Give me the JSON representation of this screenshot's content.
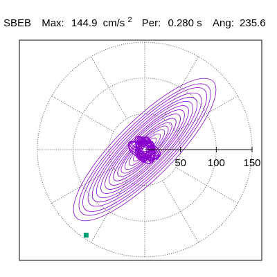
{
  "header": {
    "station": "SBEB",
    "max_label": "Max:",
    "max_value": "144.9",
    "max_unit": "cm/s",
    "max_exp": "2",
    "per_label": "Per:",
    "per_value": "0.280 s",
    "ang_label": "Ang:",
    "ang_value": "235.6"
  },
  "chart_data": {
    "type": "polar-orbit",
    "title": "SBEB Max: 144.9 cm/s2 Per: 0.280 s Ang: 235.6",
    "rmax": 150,
    "radial_ticks": [
      50,
      100,
      150
    ],
    "radial_tick_labels": [
      "50",
      "100",
      "150"
    ],
    "dotted_circles": [
      50,
      100,
      150
    ],
    "spoke_angles_deg": [
      0,
      30,
      60,
      90,
      120,
      150,
      180,
      210,
      240,
      270,
      300,
      330
    ],
    "grid": true,
    "peak_amplitude": 144.9,
    "peak_angle_deg": 235.6,
    "orbit_axis_angle_deg": 45,
    "series": [
      {
        "values": [
          {
            "a": 135,
            "b": 40
          },
          {
            "a": 125,
            "b": 36
          },
          {
            "a": 118,
            "b": 33
          },
          {
            "a": 108,
            "b": 30
          },
          {
            "a": 100,
            "b": 27
          },
          {
            "a": 92,
            "b": 25
          },
          {
            "a": 84,
            "b": 22
          },
          {
            "a": 76,
            "b": 20
          },
          {
            "a": 68,
            "b": 18
          },
          {
            "a": 60,
            "b": 15
          },
          {
            "a": 52,
            "b": 13
          },
          {
            "a": 45,
            "b": 12
          },
          {
            "a": 38,
            "b": 10
          },
          {
            "a": 30,
            "b": 8
          },
          {
            "a": 22,
            "b": 6
          },
          {
            "a": 16,
            "b": 5
          }
        ]
      }
    ],
    "colors": {
      "orbit": "#8800cc",
      "marker": "#009e73",
      "grid": "#555555",
      "axis": "#000000"
    }
  }
}
